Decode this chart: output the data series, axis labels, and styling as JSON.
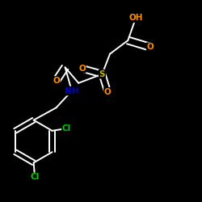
{
  "background_color": "#000000",
  "bond_color": "#ffffff",
  "atom_colors": {
    "O": "#ff8c00",
    "N": "#0000cd",
    "S": "#c8b400",
    "Cl": "#00cc00",
    "C": "#ffffff",
    "H": "#ffffff"
  },
  "figsize": [
    2.5,
    2.5
  ],
  "dpi": 100,
  "lw": 1.4,
  "fontsize": 7.5
}
